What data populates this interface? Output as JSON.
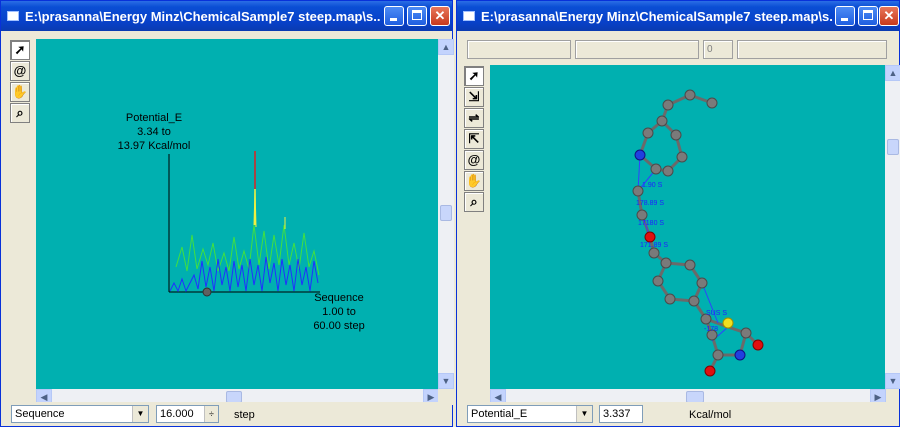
{
  "left_window": {
    "title": "E:\\prasanna\\Energy Minz\\ChemicalSample7 steep.map\\s...",
    "y_axis_label": [
      "Potential_E",
      "3.34  to",
      "13.97  Kcal/mol"
    ],
    "x_axis_label": [
      "Sequence",
      "1.00  to",
      "60.00  step"
    ],
    "status": {
      "variable": "Sequence",
      "value": "16.000",
      "unit": "step"
    }
  },
  "right_window": {
    "title": "E:\\prasanna\\Energy Minz\\ChemicalSample7 steep.map\\s...",
    "fields": [
      "",
      "",
      "0",
      ""
    ],
    "status": {
      "variable": "Potential_E",
      "value": "3.337",
      "unit": "Kcal/mol"
    },
    "atom_labels": [
      "1.90 S",
      "178.89 S",
      "17180 S",
      "171.89 S",
      "SUS S",
      "-178"
    ]
  },
  "tools": {
    "left": [
      "arrow-icon",
      "rotate-icon",
      "hand-icon",
      "zoom-icon"
    ],
    "right": [
      "arrow-icon",
      "select-atom-icon",
      "select-bond-icon",
      "select-group-icon",
      "rotate-icon",
      "hand-icon",
      "zoom-icon"
    ]
  },
  "colors": {
    "canvas": "#00b0b0",
    "title_bar": "#0a4ed4",
    "trace_blue": "#2030ff",
    "trace_green": "#40e040",
    "trace_yellow": "#f0f040",
    "trace_red": "#e02020"
  }
}
